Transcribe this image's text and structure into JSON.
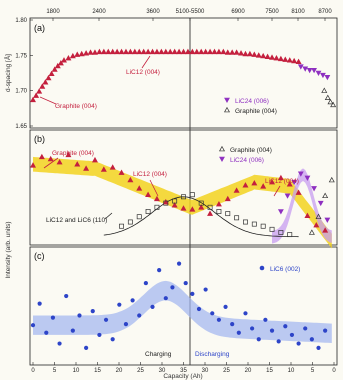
{
  "chart_data": [
    {
      "panel": "(a)",
      "type": "scatter",
      "ylabel": "d-spacing [Å]",
      "ylim": [
        1.65,
        1.8
      ],
      "yticks": [
        "1.65",
        "1.70",
        "1.75",
        "1.80"
      ],
      "top_axis_ticks": [
        "1800",
        "2400",
        "3600",
        "5100-5500",
        "6900",
        "7500",
        "8100",
        "8700"
      ],
      "series": [
        {
          "name": "Graphite (004)",
          "marker": "triangle-up",
          "color": "#c4203e",
          "x": [
            0,
            0.7,
            1.4,
            2.1,
            2.8,
            3.5,
            4.2,
            4.9,
            5.6,
            6.3
          ],
          "y": [
            1.687,
            1.693,
            1.699,
            1.706,
            1.712,
            1.718,
            1.724,
            1.73,
            1.735,
            1.739
          ]
        },
        {
          "name": "LiC12 (004)",
          "marker": "triangle-up",
          "color": "#c4203e",
          "x": [
            7,
            8,
            9,
            10,
            11,
            12,
            13,
            14,
            15,
            16,
            17,
            18,
            19,
            20,
            21,
            22,
            23,
            24,
            25,
            26,
            27,
            28,
            29,
            30,
            31,
            32,
            33,
            34,
            35,
            36,
            37,
            38,
            39,
            40,
            41,
            42,
            43,
            44,
            45,
            46,
            47,
            48,
            49,
            50,
            51,
            52,
            53,
            54,
            55,
            56,
            57,
            58,
            59,
            60
          ],
          "y": [
            1.743,
            1.746,
            1.749,
            1.751,
            1.752,
            1.753,
            1.754,
            1.754,
            1.755,
            1.755,
            1.755,
            1.755,
            1.755,
            1.755,
            1.755,
            1.755,
            1.755,
            1.755,
            1.755,
            1.755,
            1.755,
            1.755,
            1.755,
            1.755,
            1.755,
            1.755,
            1.755,
            1.755,
            1.755,
            1.755,
            1.755,
            1.755,
            1.755,
            1.755,
            1.755,
            1.755,
            1.755,
            1.754,
            1.754,
            1.754,
            1.753,
            1.752,
            1.752,
            1.751,
            1.75,
            1.749,
            1.748,
            1.747,
            1.746,
            1.745,
            1.744,
            1.743,
            1.742,
            1.741
          ]
        },
        {
          "name": "LiC24 (006)",
          "marker": "triangle-down",
          "color": "#8e2fc0",
          "x": [
            60.5,
            61.5,
            62.5,
            63.5,
            64.5,
            65.5,
            66.5
          ],
          "y": [
            1.734,
            1.731,
            1.729,
            1.729,
            1.725,
            1.722,
            1.719
          ]
        },
        {
          "name": "Graphite (004)",
          "marker": "triangle-up-open",
          "color": "#333333",
          "x": [
            65.8,
            66.6,
            67.2,
            67.8
          ],
          "y": [
            1.7,
            1.69,
            1.684,
            1.68
          ]
        }
      ],
      "annotations": [
        {
          "text": "LiC12 (004)",
          "color": "#c4203e"
        },
        {
          "text": "Graphite (004)",
          "color": "#c4203e"
        }
      ],
      "legend": [
        {
          "label": "LiC24 (006)",
          "marker": "triangle-down",
          "color": "#8e2fc0"
        },
        {
          "label": "Graphite (004)",
          "marker": "triangle-up-open",
          "color": "#333333"
        }
      ]
    },
    {
      "panel": "(b)",
      "type": "scatter",
      "ylabel": "Intensity (arb. units)",
      "series": [
        {
          "name": "Graphite (004)",
          "marker": "triangle-up",
          "color": "#c4203e",
          "x": [
            0,
            2,
            4,
            6,
            8,
            10,
            12,
            14,
            16,
            18,
            20,
            22,
            24,
            26,
            28,
            30,
            32,
            34,
            36,
            38,
            40,
            42,
            44,
            46,
            48,
            50,
            52,
            54,
            56,
            58,
            60,
            62,
            64,
            66
          ],
          "y": [
            0.74,
            0.82,
            0.8,
            0.77,
            0.84,
            0.75,
            0.71,
            0.79,
            0.7,
            0.72,
            0.67,
            0.6,
            0.52,
            0.46,
            0.42,
            0.39,
            0.36,
            0.33,
            0.32,
            0.34,
            0.28,
            0.37,
            0.42,
            0.5,
            0.55,
            0.57,
            0.54,
            0.58,
            0.62,
            0.56,
            0.48,
            0.26,
            0.17,
            0.12
          ]
        },
        {
          "name": "LiC12 and LiC6 (110)",
          "marker": "square-open",
          "color": "#333333",
          "x": [
            20,
            22,
            24,
            26,
            28,
            30,
            32,
            34,
            36,
            38,
            40,
            42,
            44,
            46,
            48,
            50,
            52,
            54,
            56,
            58
          ],
          "y": [
            0.16,
            0.2,
            0.25,
            0.3,
            0.34,
            0.38,
            0.4,
            0.44,
            0.46,
            0.38,
            0.34,
            0.3,
            0.28,
            0.24,
            0.2,
            0.18,
            0.16,
            0.13,
            0.1,
            0.08
          ]
        },
        {
          "name": "LiC24 (006)",
          "marker": "triangle-down",
          "color": "#8e2fc0",
          "x": [
            56,
            57.5,
            59,
            60.5,
            62,
            63.5,
            65,
            66.5
          ],
          "y": [
            0.3,
            0.45,
            0.58,
            0.66,
            0.62,
            0.52,
            0.38,
            0.22
          ]
        },
        {
          "name": "Graphite (004)",
          "marker": "triangle-up-open",
          "color": "#333333",
          "x": [
            63,
            64.5,
            66,
            67.5
          ],
          "y": [
            0.1,
            0.25,
            0.45,
            0.6
          ]
        }
      ],
      "annotations": [
        {
          "text": "Graphite (004)",
          "color": "#c4203e"
        },
        {
          "text": "LiC12 (004)",
          "color": "#c4203e"
        },
        {
          "text": "LiC12 (004)",
          "color": "#c4203e"
        },
        {
          "text": "LiC12 and LiC6 (110)",
          "color": "#222222"
        }
      ],
      "legend": [
        {
          "label": "Graphite (004)",
          "marker": "triangle-up-open",
          "color": "#333333"
        },
        {
          "label": "LiC24 (006)",
          "marker": "triangle-down",
          "color": "#8e2fc0"
        }
      ]
    },
    {
      "panel": "(c)",
      "type": "scatter",
      "xlabel": "Capacity (Ah)",
      "xticks": [
        "0",
        "5",
        "10",
        "15",
        "20",
        "25",
        "30",
        "35",
        "30",
        "25",
        "20",
        "15",
        "10",
        "5",
        "0"
      ],
      "series": [
        {
          "name": "LiC6 (002)",
          "marker": "circle",
          "color": "#2d44c8",
          "x": [
            0,
            1.5,
            3,
            4.5,
            6,
            7.5,
            9,
            10.5,
            12,
            13.5,
            15,
            16.5,
            18,
            19.5,
            21,
            22.5,
            24,
            25.5,
            27,
            28.5,
            30,
            31.5,
            33,
            34.5,
            36,
            37.5,
            39,
            40.5,
            42,
            43.5,
            45,
            46.5,
            48,
            49.5,
            51,
            52.5,
            54,
            55.5,
            57,
            58.5,
            60,
            61.5,
            63,
            64.5,
            66
          ],
          "y": [
            0.35,
            0.55,
            0.28,
            0.42,
            0.18,
            0.62,
            0.3,
            0.44,
            0.14,
            0.48,
            0.26,
            0.4,
            0.22,
            0.54,
            0.36,
            0.58,
            0.44,
            0.74,
            0.52,
            0.86,
            0.6,
            0.7,
            0.92,
            0.74,
            0.64,
            0.5,
            0.68,
            0.46,
            0.4,
            0.52,
            0.36,
            0.28,
            0.46,
            0.32,
            0.22,
            0.4,
            0.3,
            0.2,
            0.34,
            0.26,
            0.18,
            0.32,
            0.22,
            0.14,
            0.3
          ]
        }
      ],
      "annotations": [
        {
          "text": "Charging",
          "color": "#222222"
        },
        {
          "text": "Discharging",
          "color": "#2d44c8"
        }
      ],
      "legend": [
        {
          "label": "LiC6 (002)",
          "marker": "circle",
          "color": "#2d44c8"
        }
      ]
    }
  ],
  "colors": {
    "red": "#c4203e",
    "purple": "#8e2fc0",
    "blue": "#2d44c8",
    "yellow_band": "#f2d21e",
    "purple_band": "#c79cf0",
    "blue_band": "#9fb4ef",
    "black": "#222222"
  }
}
